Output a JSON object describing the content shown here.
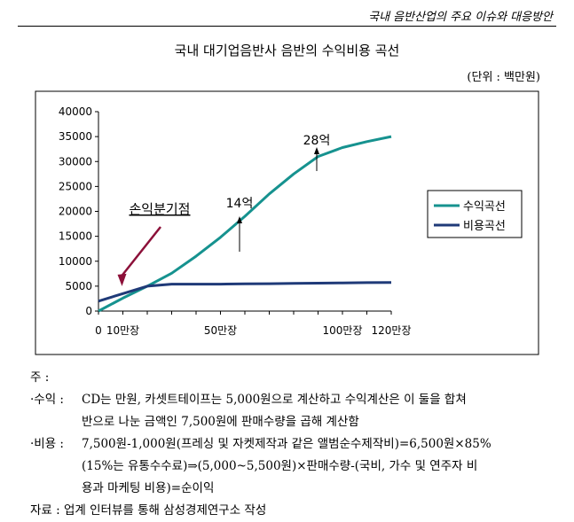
{
  "header": {
    "title": "국내 음반산업의 주요 이슈와 대응방안"
  },
  "chart_data": {
    "type": "line",
    "title": "국내 대기업음반사 음반의 수익비용 곡선",
    "unit": "(단위 : 백만원)",
    "x": [
      0,
      10,
      20,
      30,
      40,
      50,
      60,
      70,
      80,
      90,
      100,
      110,
      120
    ],
    "x_ticks": [
      {
        "x": 0,
        "label": "0"
      },
      {
        "x": 10,
        "label": "10만장"
      },
      {
        "x": 50,
        "label": "50만장"
      },
      {
        "x": 100,
        "label": "100만장"
      },
      {
        "x": 120,
        "label": "120만장"
      }
    ],
    "y_ticks": [
      0,
      5000,
      10000,
      15000,
      20000,
      25000,
      30000,
      35000,
      40000
    ],
    "xlim": [
      0,
      120
    ],
    "ylim": [
      0,
      40000
    ],
    "series": [
      {
        "name": "수익곡선",
        "color": "#16928f",
        "values": [
          0,
          2600,
          5000,
          7600,
          11000,
          14800,
          19000,
          23500,
          27500,
          31000,
          32800,
          34000,
          35000
        ]
      },
      {
        "name": "비용곡선",
        "color": "#1f3a78",
        "values": [
          2000,
          3500,
          5000,
          5400,
          5400,
          5400,
          5450,
          5500,
          5550,
          5600,
          5650,
          5700,
          5750
        ]
      }
    ],
    "annotations": [
      {
        "text": "손익분기점",
        "x": 10,
        "y": 5000
      },
      {
        "text": "14억",
        "x": 60,
        "y": 12500
      },
      {
        "text": "28억",
        "x": 90,
        "y": 29000
      }
    ],
    "legend": "right",
    "grid": false
  },
  "notes": {
    "label": "주 :",
    "revenue_head": "·수익 :",
    "revenue_1": "CD는 만원, 카셋트테이프는 5,000원으로 계산하고 수익계산은 이 둘을 합쳐",
    "revenue_2": "반으로 나눈 금액인 7,500원에 판매수량을 곱해 계산함",
    "cost_head": "·비용 :",
    "cost_1": "7,500원-1,000원(프레싱 및 자켓제작과 같은 앨범순수제작비)=6,500원×85%",
    "cost_2": "(15%는 유통수수료)⇒(5,000~5,500원)×판매수량-(국비, 가수 및 연주자 비",
    "cost_3": "용과 마케팅 비용)=순이익",
    "source": "자료 : 업계 인터뷰를 통해 삼성경제연구소 작성"
  }
}
